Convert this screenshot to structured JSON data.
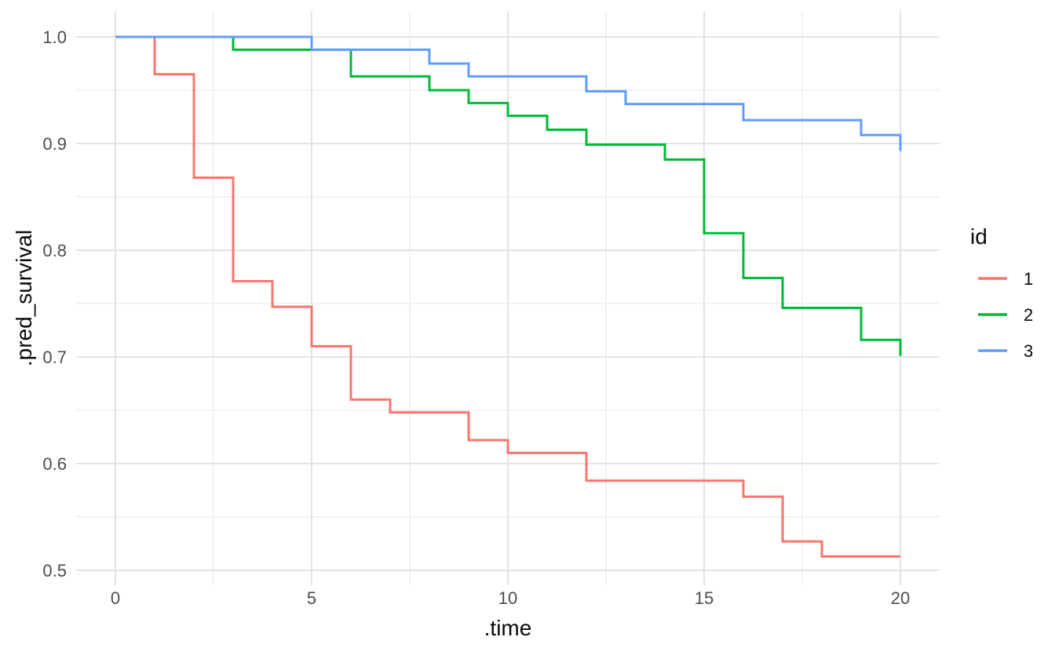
{
  "figure": {
    "background": "#ffffff"
  },
  "chart_data": {
    "type": "line",
    "step": true,
    "title": "",
    "xlabel": ".time",
    "ylabel": ".pred_survival",
    "x_axis": {
      "title": ".time",
      "range": [
        0,
        20
      ],
      "major_ticks": [
        {
          "label": "0",
          "value": 0
        },
        {
          "label": "5",
          "value": 5
        },
        {
          "label": "10",
          "value": 10
        },
        {
          "label": "15",
          "value": 15
        },
        {
          "label": "20",
          "value": 20
        }
      ],
      "minor_ticks": [
        2.5,
        7.5,
        12.5,
        17.5
      ]
    },
    "y_axis": {
      "title": ".pred_survival",
      "range": [
        0.5,
        1.0
      ],
      "major_ticks": [
        {
          "label": "1.0",
          "value": 1.0
        },
        {
          "label": "0.9",
          "value": 0.9
        },
        {
          "label": "0.8",
          "value": 0.8
        },
        {
          "label": "0.7",
          "value": 0.7
        },
        {
          "label": "0.6",
          "value": 0.6
        },
        {
          "label": "0.5",
          "value": 0.5
        }
      ],
      "minor_ticks": [
        0.95,
        0.85,
        0.75,
        0.65,
        0.55
      ]
    },
    "grid": true,
    "legend": {
      "title": "id",
      "position": "right"
    },
    "colors": {
      "grid_major": "#e3e3e3",
      "grid_minor": "#f0f0f0",
      "tick_text": "#4d4d4d",
      "title_text": "#0a0a0a"
    },
    "series": [
      {
        "name": "1",
        "color": "#F8766D",
        "end_time": 20,
        "points": [
          [
            0,
            1.0
          ],
          [
            1,
            0.965
          ],
          [
            2,
            0.868
          ],
          [
            3,
            0.771
          ],
          [
            4,
            0.747
          ],
          [
            5,
            0.71
          ],
          [
            6,
            0.66
          ],
          [
            7,
            0.648
          ],
          [
            9,
            0.622
          ],
          [
            10,
            0.61
          ],
          [
            12,
            0.584
          ],
          [
            16,
            0.569
          ],
          [
            17,
            0.527
          ],
          [
            18,
            0.513
          ]
        ]
      },
      {
        "name": "2",
        "color": "#00BA38",
        "end_time": 20,
        "points": [
          [
            0,
            1.0
          ],
          [
            3,
            0.988
          ],
          [
            6,
            0.963
          ],
          [
            8,
            0.95
          ],
          [
            9,
            0.938
          ],
          [
            10,
            0.926
          ],
          [
            11,
            0.913
          ],
          [
            12,
            0.899
          ],
          [
            14,
            0.885
          ],
          [
            15,
            0.816
          ],
          [
            16,
            0.774
          ],
          [
            17,
            0.746
          ],
          [
            19,
            0.716
          ],
          [
            20,
            0.701
          ]
        ]
      },
      {
        "name": "3",
        "color": "#619CFF",
        "end_time": 20,
        "points": [
          [
            0,
            1.0
          ],
          [
            5,
            0.988
          ],
          [
            8,
            0.975
          ],
          [
            9,
            0.963
          ],
          [
            12,
            0.949
          ],
          [
            13,
            0.937
          ],
          [
            16,
            0.922
          ],
          [
            19,
            0.908
          ],
          [
            20,
            0.893
          ]
        ]
      }
    ]
  }
}
